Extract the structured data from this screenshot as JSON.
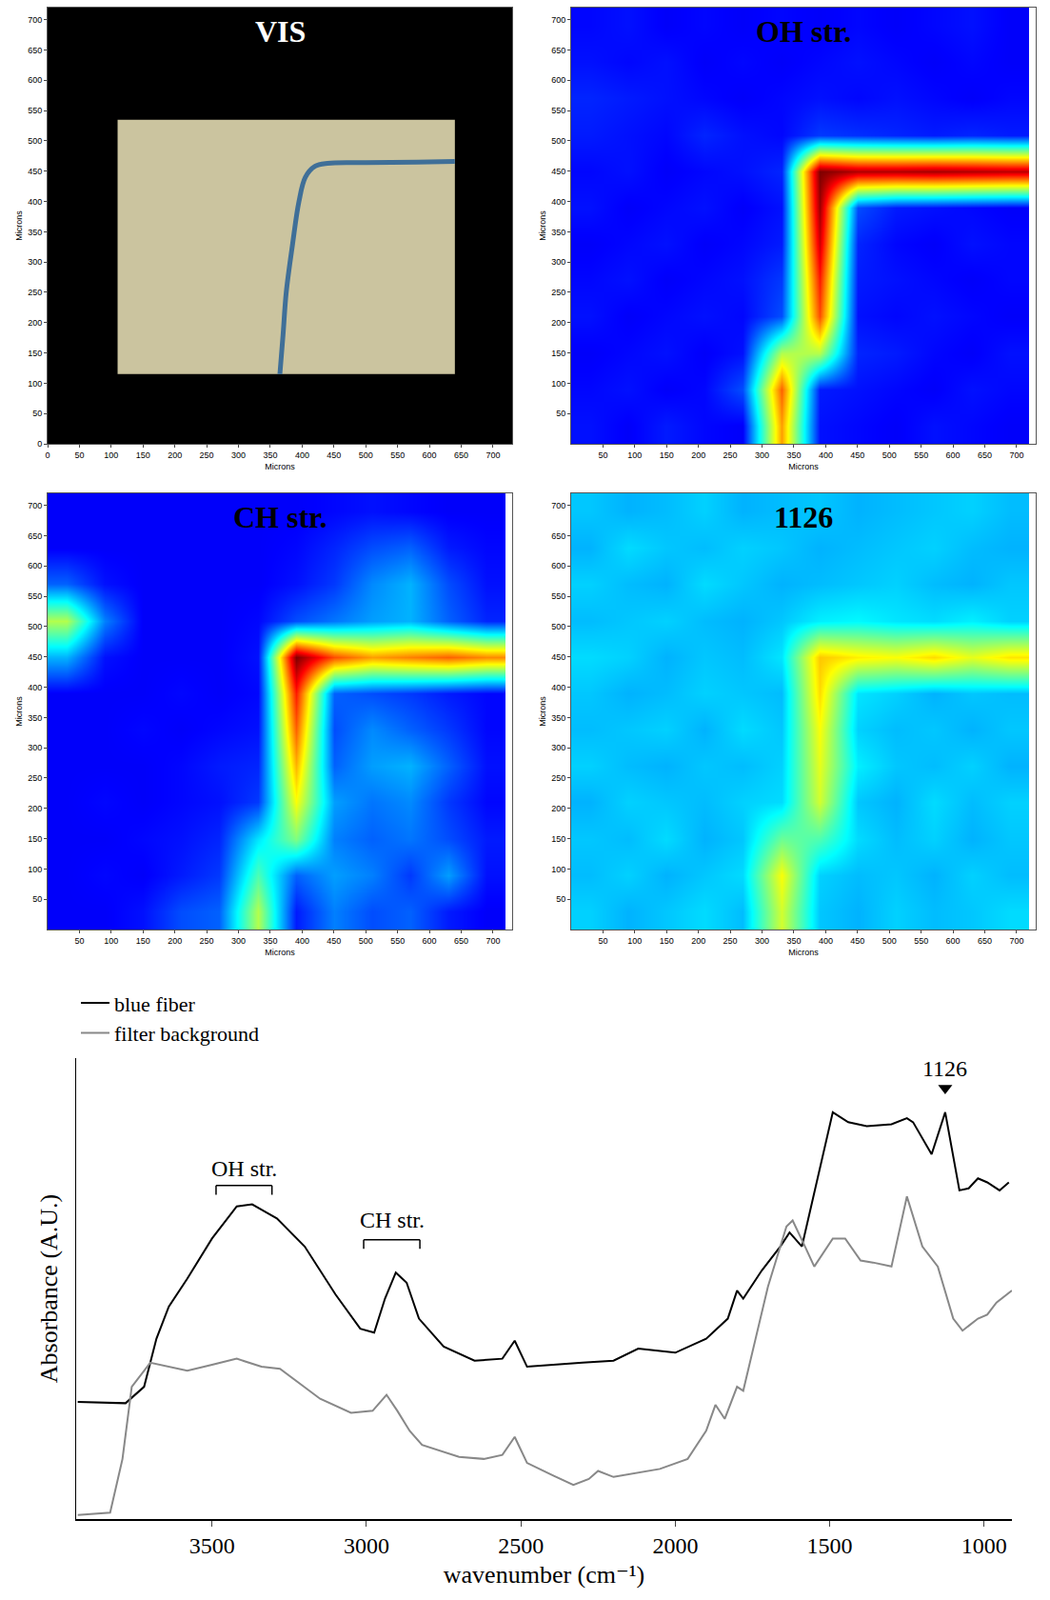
{
  "chart_data": [
    {
      "type": "image",
      "title": "VIS",
      "x_label": "Microns",
      "y_label": "Microns",
      "xlim": [
        0,
        730
      ],
      "ylim": [
        0,
        720
      ],
      "xticks": [
        0,
        50,
        100,
        150,
        200,
        250,
        300,
        350,
        400,
        450,
        500,
        550,
        600,
        650,
        700
      ],
      "yticks": [
        0,
        50,
        100,
        150,
        200,
        250,
        300,
        350,
        400,
        450,
        500,
        550,
        600,
        650,
        700
      ],
      "grid": false,
      "image_extent": {
        "x": [
          110,
          640
        ],
        "y": [
          115,
          535
        ]
      },
      "fiber": {
        "x": [
          365,
          370,
          375,
          385,
          395,
          405,
          420,
          440,
          500,
          580,
          640
        ],
        "y": [
          115,
          180,
          250,
          330,
          400,
          440,
          458,
          463,
          464,
          465,
          466
        ]
      }
    },
    {
      "type": "heatmap",
      "title": "OH str.",
      "x_label": "Microns",
      "y_label": "Microns",
      "xlim": [
        0,
        730
      ],
      "ylim": [
        0,
        720
      ],
      "xticks": [
        50,
        100,
        150,
        200,
        250,
        300,
        350,
        400,
        450,
        500,
        550,
        600,
        650,
        700
      ],
      "yticks": [
        50,
        100,
        150,
        200,
        250,
        300,
        350,
        400,
        450,
        500,
        550,
        600,
        650,
        700
      ],
      "grid": false,
      "zlim": [
        0,
        1
      ],
      "x": [
        30,
        90,
        150,
        210,
        270,
        330,
        390,
        450,
        510,
        570,
        630,
        690
      ],
      "y": [
        30,
        90,
        150,
        210,
        270,
        330,
        390,
        450,
        510,
        570,
        630,
        690
      ],
      "z": [
        [
          0.14,
          0.12,
          0.15,
          0.13,
          0.12,
          0.72,
          0.14,
          0.13,
          0.12,
          0.14,
          0.13,
          0.12
        ],
        [
          0.13,
          0.14,
          0.12,
          0.13,
          0.2,
          0.78,
          0.15,
          0.14,
          0.13,
          0.12,
          0.14,
          0.13
        ],
        [
          0.12,
          0.13,
          0.14,
          0.12,
          0.14,
          0.55,
          0.55,
          0.16,
          0.15,
          0.13,
          0.12,
          0.14
        ],
        [
          0.14,
          0.12,
          0.13,
          0.14,
          0.13,
          0.2,
          0.8,
          0.14,
          0.13,
          0.14,
          0.13,
          0.12
        ],
        [
          0.13,
          0.14,
          0.12,
          0.13,
          0.14,
          0.18,
          0.85,
          0.15,
          0.14,
          0.13,
          0.12,
          0.13
        ],
        [
          0.12,
          0.13,
          0.14,
          0.12,
          0.13,
          0.15,
          0.92,
          0.16,
          0.13,
          0.12,
          0.14,
          0.13
        ],
        [
          0.14,
          0.12,
          0.13,
          0.14,
          0.12,
          0.14,
          0.97,
          0.2,
          0.15,
          0.14,
          0.13,
          0.12
        ],
        [
          0.13,
          0.14,
          0.12,
          0.13,
          0.14,
          0.16,
          1.0,
          0.95,
          0.95,
          0.96,
          0.95,
          0.94
        ],
        [
          0.15,
          0.14,
          0.13,
          0.16,
          0.14,
          0.13,
          0.18,
          0.17,
          0.16,
          0.15,
          0.16,
          0.15
        ],
        [
          0.16,
          0.15,
          0.14,
          0.13,
          0.12,
          0.13,
          0.14,
          0.13,
          0.14,
          0.13,
          0.12,
          0.13
        ],
        [
          0.14,
          0.13,
          0.14,
          0.12,
          0.13,
          0.12,
          0.13,
          0.14,
          0.13,
          0.12,
          0.13,
          0.12
        ],
        [
          0.13,
          0.14,
          0.12,
          0.13,
          0.12,
          0.13,
          0.12,
          0.13,
          0.12,
          0.13,
          0.14,
          0.12
        ]
      ]
    },
    {
      "type": "heatmap",
      "title": "CH str.",
      "x_label": "Microns",
      "y_label": "Microns",
      "xlim": [
        0,
        730
      ],
      "ylim": [
        0,
        720
      ],
      "xticks": [
        50,
        100,
        150,
        200,
        250,
        300,
        350,
        400,
        450,
        500,
        550,
        600,
        650,
        700
      ],
      "yticks": [
        50,
        100,
        150,
        200,
        250,
        300,
        350,
        400,
        450,
        500,
        550,
        600,
        650,
        700
      ],
      "grid": false,
      "zlim": [
        0,
        1
      ],
      "x": [
        30,
        90,
        150,
        210,
        270,
        330,
        390,
        450,
        510,
        570,
        630,
        690
      ],
      "y": [
        30,
        90,
        150,
        210,
        270,
        330,
        390,
        450,
        510,
        570,
        630,
        690
      ],
      "z": [
        [
          0.12,
          0.12,
          0.14,
          0.2,
          0.22,
          0.55,
          0.15,
          0.25,
          0.2,
          0.22,
          0.15,
          0.12
        ],
        [
          0.12,
          0.13,
          0.12,
          0.15,
          0.18,
          0.45,
          0.22,
          0.28,
          0.25,
          0.18,
          0.28,
          0.14
        ],
        [
          0.12,
          0.12,
          0.13,
          0.14,
          0.16,
          0.35,
          0.5,
          0.25,
          0.22,
          0.24,
          0.2,
          0.15
        ],
        [
          0.12,
          0.13,
          0.12,
          0.13,
          0.14,
          0.18,
          0.62,
          0.28,
          0.24,
          0.26,
          0.18,
          0.13
        ],
        [
          0.12,
          0.12,
          0.12,
          0.13,
          0.15,
          0.16,
          0.7,
          0.22,
          0.28,
          0.3,
          0.22,
          0.14
        ],
        [
          0.12,
          0.12,
          0.13,
          0.12,
          0.13,
          0.14,
          0.78,
          0.2,
          0.26,
          0.22,
          0.18,
          0.13
        ],
        [
          0.12,
          0.12,
          0.12,
          0.13,
          0.12,
          0.13,
          0.85,
          0.22,
          0.2,
          0.18,
          0.15,
          0.13
        ],
        [
          0.3,
          0.14,
          0.12,
          0.12,
          0.12,
          0.14,
          1.0,
          0.8,
          0.72,
          0.75,
          0.78,
          0.74
        ],
        [
          0.55,
          0.25,
          0.12,
          0.12,
          0.12,
          0.13,
          0.2,
          0.24,
          0.28,
          0.3,
          0.22,
          0.16
        ],
        [
          0.22,
          0.14,
          0.12,
          0.12,
          0.12,
          0.12,
          0.14,
          0.18,
          0.26,
          0.3,
          0.2,
          0.14
        ],
        [
          0.12,
          0.12,
          0.12,
          0.12,
          0.12,
          0.12,
          0.13,
          0.16,
          0.2,
          0.22,
          0.15,
          0.13
        ],
        [
          0.12,
          0.12,
          0.12,
          0.12,
          0.12,
          0.12,
          0.12,
          0.13,
          0.14,
          0.13,
          0.12,
          0.12
        ]
      ]
    },
    {
      "type": "heatmap",
      "title": "1126",
      "x_label": "Microns",
      "y_label": "Microns",
      "xlim": [
        0,
        730
      ],
      "ylim": [
        0,
        720
      ],
      "xticks": [
        50,
        100,
        150,
        200,
        250,
        300,
        350,
        400,
        450,
        500,
        550,
        600,
        650,
        700
      ],
      "yticks": [
        50,
        100,
        150,
        200,
        250,
        300,
        350,
        400,
        450,
        500,
        550,
        600,
        650,
        700
      ],
      "grid": false,
      "zlim": [
        0,
        1
      ],
      "x": [
        30,
        90,
        150,
        210,
        270,
        330,
        390,
        450,
        510,
        570,
        630,
        690
      ],
      "y": [
        30,
        90,
        150,
        210,
        270,
        330,
        390,
        450,
        510,
        570,
        630,
        690
      ],
      "z": [
        [
          0.33,
          0.3,
          0.32,
          0.34,
          0.31,
          0.58,
          0.32,
          0.3,
          0.33,
          0.31,
          0.32,
          0.34
        ],
        [
          0.31,
          0.33,
          0.3,
          0.32,
          0.34,
          0.62,
          0.33,
          0.31,
          0.32,
          0.3,
          0.33,
          0.31
        ],
        [
          0.32,
          0.31,
          0.34,
          0.3,
          0.32,
          0.48,
          0.45,
          0.34,
          0.31,
          0.33,
          0.3,
          0.32
        ],
        [
          0.3,
          0.33,
          0.32,
          0.31,
          0.33,
          0.34,
          0.58,
          0.32,
          0.3,
          0.34,
          0.31,
          0.33
        ],
        [
          0.33,
          0.31,
          0.3,
          0.32,
          0.31,
          0.33,
          0.6,
          0.36,
          0.32,
          0.31,
          0.33,
          0.3
        ],
        [
          0.31,
          0.32,
          0.33,
          0.3,
          0.34,
          0.32,
          0.62,
          0.33,
          0.31,
          0.32,
          0.3,
          0.32
        ],
        [
          0.32,
          0.3,
          0.31,
          0.33,
          0.32,
          0.31,
          0.66,
          0.35,
          0.33,
          0.3,
          0.32,
          0.31
        ],
        [
          0.34,
          0.33,
          0.3,
          0.32,
          0.31,
          0.35,
          0.68,
          0.64,
          0.62,
          0.66,
          0.6,
          0.65
        ],
        [
          0.31,
          0.32,
          0.33,
          0.31,
          0.3,
          0.32,
          0.36,
          0.37,
          0.35,
          0.34,
          0.36,
          0.33
        ],
        [
          0.33,
          0.31,
          0.3,
          0.34,
          0.32,
          0.3,
          0.31,
          0.32,
          0.33,
          0.31,
          0.3,
          0.32
        ],
        [
          0.3,
          0.34,
          0.32,
          0.31,
          0.33,
          0.32,
          0.3,
          0.31,
          0.32,
          0.33,
          0.31,
          0.3
        ],
        [
          0.32,
          0.3,
          0.31,
          0.33,
          0.3,
          0.31,
          0.32,
          0.3,
          0.31,
          0.32,
          0.33,
          0.31
        ]
      ]
    },
    {
      "type": "line",
      "x_label": "wavenumber (cm⁻¹)",
      "y_label": "Absorbance (A.U.)",
      "xlim": [
        3940,
        910
      ],
      "ylim": [
        0,
        115
      ],
      "xticks": [
        3500,
        3000,
        2500,
        2000,
        1500,
        1000
      ],
      "yticks": [],
      "tick_labels": "x",
      "grid": false,
      "legend": "top left",
      "series": [
        {
          "name": "blue fiber",
          "color": "#000000",
          "x": [
            3935,
            3780,
            3720,
            3680,
            3640,
            3580,
            3500,
            3420,
            3370,
            3290,
            3200,
            3100,
            3020,
            2975,
            2940,
            2905,
            2870,
            2830,
            2750,
            2650,
            2560,
            2520,
            2480,
            2400,
            2300,
            2200,
            2120,
            2000,
            1900,
            1830,
            1800,
            1780,
            1720,
            1660,
            1630,
            1590,
            1540,
            1490,
            1440,
            1380,
            1300,
            1250,
            1230,
            1170,
            1126,
            1080,
            1050,
            1020,
            990,
            950,
            920
          ],
          "values": [
            29.2,
            28.9,
            33,
            45,
            53,
            60,
            70,
            78,
            78.5,
            75,
            68,
            56,
            47.5,
            46.5,
            55,
            61.5,
            59,
            50,
            43,
            39.5,
            40,
            44.5,
            38,
            38.5,
            39,
            39.5,
            42.5,
            41.5,
            45,
            50,
            57,
            55,
            62,
            68,
            71.5,
            68,
            85,
            101.5,
            99,
            98,
            98.5,
            100,
            99,
            91,
            101.5,
            82,
            82.5,
            85,
            84,
            82,
            84
          ]
        },
        {
          "name": "filter background",
          "color": "#888888",
          "x": [
            3935,
            3830,
            3790,
            3760,
            3700,
            3640,
            3580,
            3500,
            3420,
            3340,
            3280,
            3150,
            3050,
            2980,
            2935,
            2900,
            2860,
            2820,
            2700,
            2620,
            2560,
            2520,
            2480,
            2400,
            2330,
            2280,
            2250,
            2200,
            2130,
            2050,
            1960,
            1900,
            1870,
            1840,
            1800,
            1780,
            1740,
            1700,
            1640,
            1620,
            1580,
            1550,
            1490,
            1450,
            1400,
            1360,
            1300,
            1250,
            1200,
            1150,
            1100,
            1070,
            1020,
            990,
            960,
            910
          ],
          "values": [
            1,
            1.6,
            15,
            33,
            39,
            38,
            37,
            38.5,
            40,
            38,
            37.5,
            30,
            26.5,
            27,
            31,
            27,
            22,
            18.5,
            15.5,
            15,
            16,
            20.5,
            14,
            11,
            8.5,
            10,
            12,
            10.5,
            11.5,
            12.5,
            15,
            22,
            28.5,
            25,
            33,
            32,
            45,
            58,
            73,
            74.5,
            68,
            63,
            70,
            70,
            64.5,
            64,
            63,
            80.5,
            68,
            63,
            50,
            47,
            50,
            51,
            54,
            57
          ]
        }
      ],
      "annotations": [
        {
          "text": "OH str.",
          "x": 3396,
          "y": 87.5,
          "bracket": [
            3487,
            3306
          ],
          "bracket_y": 83.2
        },
        {
          "text": "CH str.",
          "x": 2918,
          "y": 74.5,
          "bracket": [
            3009,
            2827
          ],
          "bracket_y": 69.7
        },
        {
          "text": "1126",
          "x": 1126,
          "y": 112.5,
          "marker": "triangle-down",
          "marker_y": 107.5
        }
      ]
    }
  ]
}
